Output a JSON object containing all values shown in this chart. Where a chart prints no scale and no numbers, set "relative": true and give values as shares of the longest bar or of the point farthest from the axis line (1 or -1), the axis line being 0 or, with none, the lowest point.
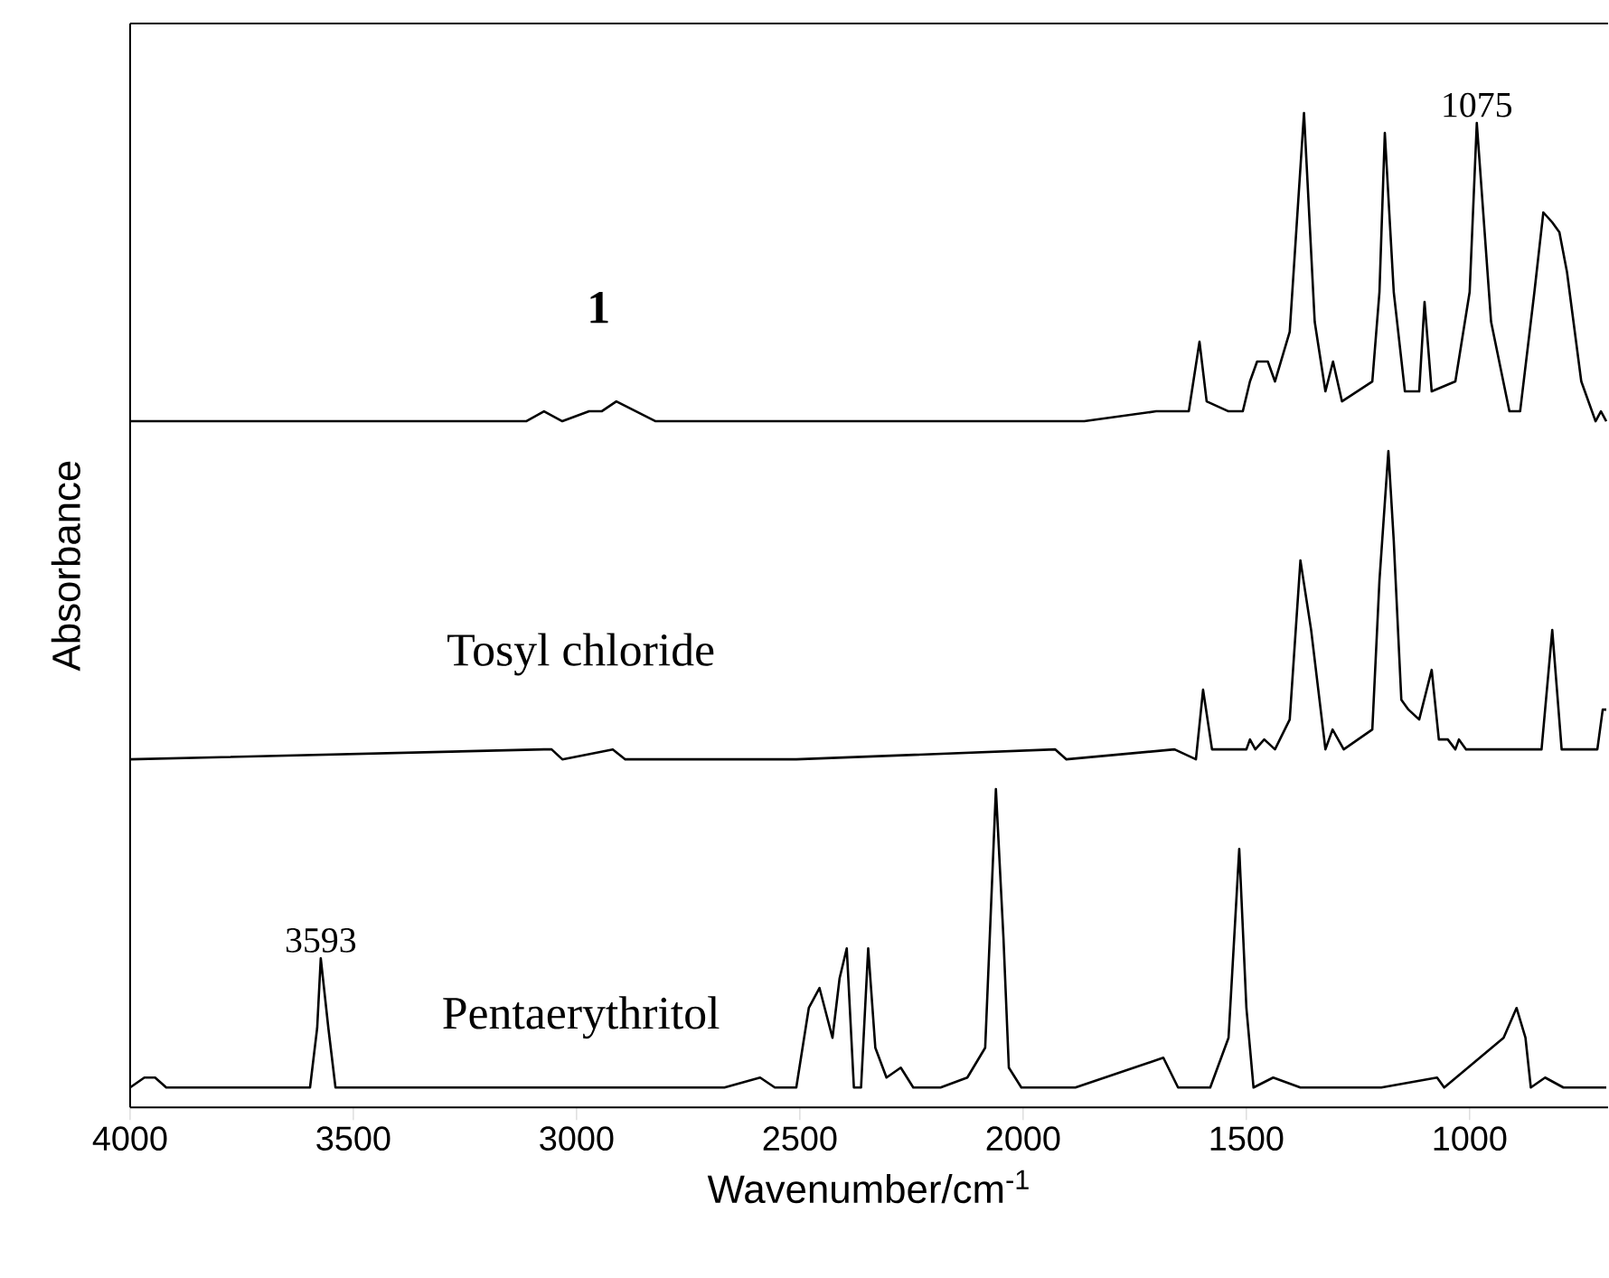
{
  "chart_data": {
    "type": "line",
    "relative": true,
    "xlabel": "Wavenumber/cm$^{-1}$",
    "ylabel": "Absorbance",
    "xlim": [
      4000,
      690
    ],
    "xticks": [
      4000,
      3500,
      3000,
      2500,
      2000,
      1500,
      1000
    ],
    "series": [
      {
        "name": "1",
        "color": "#000000",
        "x": [
          4000,
          3113,
          3073,
          3032,
          2972,
          2944,
          2911,
          2823,
          2589,
          2387,
          1984,
          1863,
          1702,
          1629,
          1605,
          1589,
          1540,
          1508,
          1492,
          1476,
          1452,
          1436,
          1403,
          1371,
          1347,
          1323,
          1306,
          1286,
          1218,
          1202,
          1190,
          1170,
          1145,
          1113,
          1101,
          1085,
          1032,
          1000,
          984,
          952,
          911,
          887,
          855,
          835,
          815,
          799,
          782,
          750,
          718,
          706,
          694
        ],
        "values": [
          0.69,
          0.69,
          0.7,
          0.69,
          0.7,
          0.7,
          0.71,
          0.69,
          0.69,
          0.69,
          0.69,
          0.69,
          0.7,
          0.7,
          0.77,
          0.71,
          0.7,
          0.7,
          0.73,
          0.75,
          0.75,
          0.73,
          0.78,
          1.0,
          0.79,
          0.72,
          0.75,
          0.71,
          0.73,
          0.82,
          0.98,
          0.82,
          0.72,
          0.72,
          0.81,
          0.72,
          0.73,
          0.82,
          0.99,
          0.79,
          0.7,
          0.7,
          0.82,
          0.9,
          0.89,
          0.88,
          0.84,
          0.73,
          0.69,
          0.7,
          0.69
        ]
      },
      {
        "name": "Tosyl chloride",
        "color": "#000000",
        "x": [
          4000,
          3073,
          3056,
          3032,
          2919,
          2891,
          2508,
          1928,
          1903,
          1661,
          1613,
          1597,
          1577,
          1500,
          1492,
          1480,
          1460,
          1436,
          1403,
          1379,
          1355,
          1323,
          1307,
          1282,
          1218,
          1202,
          1182,
          1170,
          1153,
          1137,
          1113,
          1085,
          1069,
          1049,
          1032,
          1024,
          1008,
          839,
          815,
          794,
          714,
          702,
          694
        ],
        "values": [
          0.35,
          0.36,
          0.36,
          0.35,
          0.36,
          0.35,
          0.35,
          0.36,
          0.35,
          0.36,
          0.35,
          0.42,
          0.36,
          0.36,
          0.37,
          0.36,
          0.37,
          0.36,
          0.39,
          0.55,
          0.48,
          0.36,
          0.38,
          0.36,
          0.38,
          0.53,
          0.66,
          0.57,
          0.41,
          0.4,
          0.39,
          0.44,
          0.37,
          0.37,
          0.36,
          0.37,
          0.36,
          0.36,
          0.48,
          0.36,
          0.36,
          0.4,
          0.4
        ]
      },
      {
        "name": "Pentaerythritol",
        "color": "#000000",
        "x": [
          4000,
          3968,
          3944,
          3919,
          3637,
          3597,
          3581,
          3573,
          3556,
          3540,
          3516,
          2669,
          2589,
          2556,
          2508,
          2480,
          2456,
          2427,
          2411,
          2395,
          2379,
          2363,
          2347,
          2331,
          2306,
          2274,
          2246,
          2185,
          2125,
          2085,
          2061,
          2044,
          2032,
          2004,
          1883,
          1686,
          1653,
          1581,
          1540,
          1516,
          1500,
          1484,
          1440,
          1379,
          1198,
          1073,
          1057,
          924,
          895,
          875,
          863,
          831,
          790,
          694
        ],
        "values": [
          0.02,
          0.03,
          0.03,
          0.02,
          0.02,
          0.02,
          0.08,
          0.15,
          0.08,
          0.02,
          0.02,
          0.02,
          0.03,
          0.02,
          0.02,
          0.1,
          0.12,
          0.07,
          0.13,
          0.16,
          0.02,
          0.02,
          0.16,
          0.06,
          0.03,
          0.04,
          0.02,
          0.02,
          0.03,
          0.06,
          0.32,
          0.17,
          0.04,
          0.02,
          0.02,
          0.05,
          0.02,
          0.02,
          0.07,
          0.26,
          0.1,
          0.02,
          0.03,
          0.02,
          0.02,
          0.03,
          0.02,
          0.07,
          0.1,
          0.07,
          0.02,
          0.03,
          0.02,
          0.02
        ]
      }
    ],
    "annotations": [
      {
        "text": "3593",
        "x": 3573,
        "y": 0.15
      },
      {
        "text": "1075",
        "x": 984,
        "y": 0.99
      }
    ]
  }
}
